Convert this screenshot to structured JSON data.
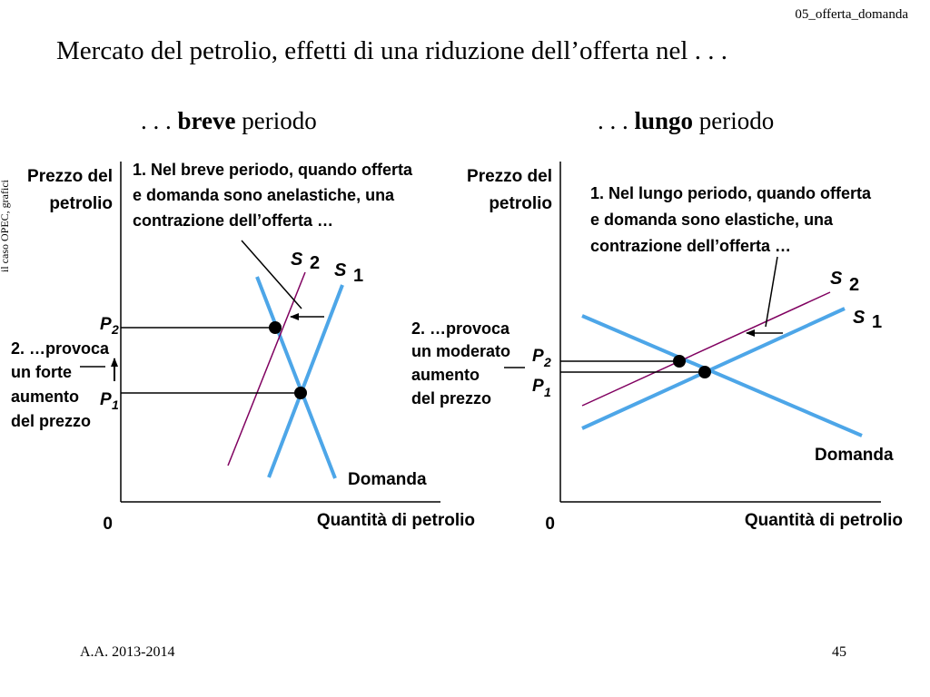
{
  "header": {
    "file_tag": "05_offerta_domanda"
  },
  "title": "Mercato del petrolio, effetti di una riduzione dell’offerta nel . . .",
  "side_note": "il caso OPEC, grafici",
  "panels": {
    "short": {
      "heading_prefix": ". . . ",
      "heading_bold": "breve",
      "heading_suffix": " periodo",
      "y_label_1": "Prezzo del",
      "y_label_2": "petrolio",
      "x_label": "Quantità di petrolio",
      "origin": "0",
      "note_1": "1. Nel breve periodo, quando offerta",
      "note_2": "e domanda sono anelastiche, una",
      "note_3": "contrazione dell’offerta …",
      "effect_1": "2. …provoca",
      "effect_2": "un forte",
      "effect_3": "aumento",
      "effect_4": "del prezzo",
      "p2": "P",
      "p2_sub": "2",
      "p1": "P",
      "p1_sub": "1",
      "s2": "S",
      "s2_sub": "2",
      "s1": "S",
      "s1_sub": "1",
      "demand": "Domanda"
    },
    "long": {
      "heading_prefix": ". . . ",
      "heading_bold": "lungo",
      "heading_suffix": " periodo",
      "y_label_1": "Prezzo del",
      "y_label_2": "petrolio",
      "x_label": "Quantità di petrolio",
      "origin": "0",
      "note_1": "1. Nel lungo periodo, quando offerta",
      "note_2": "e domanda sono elastiche, una",
      "note_3": "contrazione dell’offerta …",
      "effect_1": "2. …provoca",
      "effect_2": "un moderato",
      "effect_3": "aumento",
      "effect_4": "del prezzo",
      "p2": "P",
      "p2_sub": "2",
      "p1": "P",
      "p1_sub": "1",
      "s2": "S",
      "s2_sub": "2",
      "s1": "S",
      "s1_sub": "1",
      "demand": "Domanda"
    }
  },
  "footer": {
    "year": "A.A. 2013-2014",
    "page": "45"
  },
  "colors": {
    "curve": "#4da6e8",
    "shifted_supply": "#800060",
    "text": "#000000"
  }
}
